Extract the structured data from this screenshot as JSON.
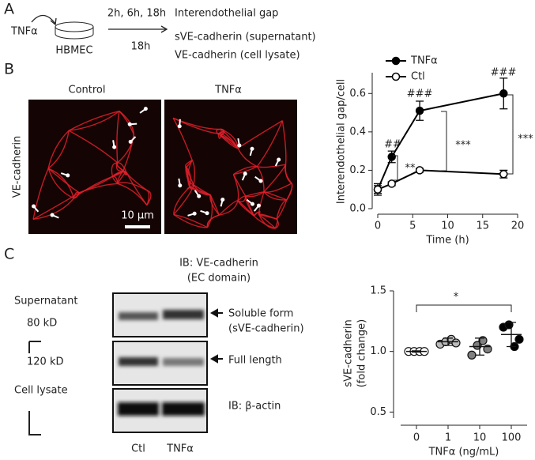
{
  "panel_a": {
    "label": "A",
    "stimulus": "TNFα",
    "cells": "HBMEC",
    "times_1": "2h, 6h, 18h",
    "times_2": "18h",
    "readout_1": "Interendothelial gap",
    "readout_2": "sVE-cadherin (supernatant)",
    "readout_3": "VE-cadherin (cell lysate)"
  },
  "panel_b": {
    "label": "B",
    "y_label": "VE-cadherin",
    "titles": [
      "Control",
      "TNFα"
    ],
    "scale_bar": "10 µm"
  },
  "chart_data": [
    {
      "type": "line",
      "x": [
        0,
        2,
        6,
        18
      ],
      "xlim": [
        0,
        20
      ],
      "xticks": [
        0,
        5,
        10,
        15,
        20
      ],
      "xlabel": "Time (h)",
      "ylim": [
        0,
        0.7
      ],
      "yticks": [
        {
          "value": 0,
          "label": "0.0"
        },
        0.2,
        0.4,
        0.6
      ],
      "ylabel": "Interendothelial gap/cell",
      "series": [
        {
          "name": "TNFα",
          "color": "#000000",
          "marker_fill": "#000000",
          "values": [
            0.1,
            0.27,
            0.51,
            0.6
          ],
          "errors": [
            0.03,
            0.03,
            0.05,
            0.08
          ]
        },
        {
          "name": "Ctl",
          "color": "#000000",
          "marker_fill": "#ffffff",
          "values": [
            0.1,
            0.13,
            0.2,
            0.18
          ],
          "errors": [
            0.02,
            0.01,
            0.01,
            0.02
          ]
        }
      ],
      "annotations": [
        "##",
        "###",
        "###",
        "**",
        "***",
        "***"
      ],
      "legend": "upper left"
    },
    {
      "type": "dot",
      "categories": [
        "0",
        "1",
        "10",
        "100"
      ],
      "xlabel": "TNFα (ng/mL)",
      "ylim": [
        0.45,
        1.5
      ],
      "yticks": [
        0.5,
        {
          "value": 1,
          "label": "1.0"
        },
        1.5
      ],
      "ylabel": [
        "sVE-cadherin",
        "(fold change)"
      ],
      "colors": [
        "#ffffff",
        "#bbbbbb",
        "#808080",
        "#000000"
      ],
      "points": [
        [
          1.0,
          1.0,
          1.0,
          1.0
        ],
        [
          1.06,
          1.08,
          1.1,
          1.07
        ],
        [
          0.97,
          1.05,
          1.09,
          1.02
        ],
        [
          1.2,
          1.22,
          1.04,
          1.1
        ]
      ],
      "means": [
        1.0,
        1.08,
        1.04,
        1.14
      ],
      "sds": [
        0.005,
        0.03,
        0.07,
        0.1
      ],
      "annotations": [
        "*"
      ]
    }
  ],
  "panel_c": {
    "label": "C",
    "blot_title": [
      "IB: VE-cadherin",
      "(EC domain)"
    ],
    "supernatant": "Supernatant",
    "kd_80": "80 kD",
    "kd_120": "120 kD",
    "cell_lysate": "Cell lysate",
    "soluble": [
      "Soluble form",
      "(sVE-cadherin)"
    ],
    "full_length": "Full length",
    "actin": "IB: β-actin",
    "lanes": [
      "Ctl",
      "TNFα"
    ]
  }
}
